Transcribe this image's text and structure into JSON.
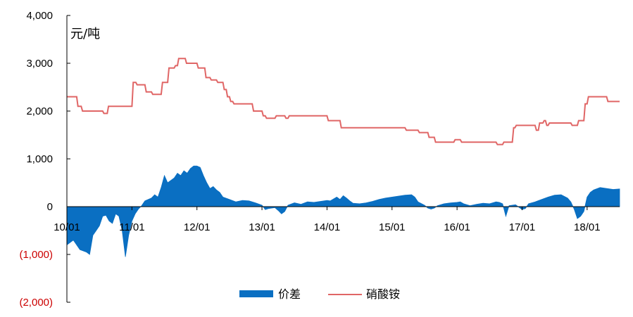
{
  "chart_data": {
    "type": "area+line",
    "unit_label": "元/吨",
    "ylim": [
      -2000,
      4000
    ],
    "yticks": [
      4000,
      3000,
      2000,
      1000,
      0,
      -1000,
      -2000
    ],
    "ytick_labels": [
      "4,000",
      "3,000",
      "2,000",
      "1,000",
      "0",
      "(1,000)",
      "(2,000)"
    ],
    "xlim": [
      2010.0,
      2018.5
    ],
    "xticks": [
      2010,
      2011,
      2012,
      2013,
      2014,
      2015,
      2016,
      2017,
      2018
    ],
    "xtick_labels": [
      "10/01",
      "11/01",
      "12/01",
      "13/01",
      "14/01",
      "15/01",
      "16/01",
      "17/01",
      "18/01"
    ],
    "legend": {
      "position": "bottom-center"
    },
    "colors": {
      "spread": "#0a6fc2",
      "price": "#e06666",
      "negative_label": "#cc0000"
    },
    "series": [
      {
        "name": "价差",
        "kind": "area",
        "points": [
          [
            2010.0,
            -800
          ],
          [
            2010.1,
            -700
          ],
          [
            2010.2,
            -900
          ],
          [
            2010.3,
            -950
          ],
          [
            2010.35,
            -1000
          ],
          [
            2010.4,
            -600
          ],
          [
            2010.45,
            -500
          ],
          [
            2010.5,
            -400
          ],
          [
            2010.55,
            -200
          ],
          [
            2010.6,
            -180
          ],
          [
            2010.65,
            -300
          ],
          [
            2010.7,
            -350
          ],
          [
            2010.75,
            -150
          ],
          [
            2010.8,
            -200
          ],
          [
            2010.85,
            -500
          ],
          [
            2010.9,
            -1050
          ],
          [
            2010.95,
            -600
          ],
          [
            2011.0,
            -300
          ],
          [
            2011.05,
            -150
          ],
          [
            2011.1,
            -50
          ],
          [
            2011.15,
            20
          ],
          [
            2011.2,
            120
          ],
          [
            2011.3,
            180
          ],
          [
            2011.35,
            250
          ],
          [
            2011.4,
            200
          ],
          [
            2011.45,
            400
          ],
          [
            2011.5,
            650
          ],
          [
            2011.55,
            500
          ],
          [
            2011.6,
            550
          ],
          [
            2011.65,
            600
          ],
          [
            2011.7,
            700
          ],
          [
            2011.75,
            650
          ],
          [
            2011.8,
            750
          ],
          [
            2011.85,
            700
          ],
          [
            2011.9,
            800
          ],
          [
            2011.95,
            850
          ],
          [
            2012.0,
            850
          ],
          [
            2012.05,
            820
          ],
          [
            2012.1,
            650
          ],
          [
            2012.15,
            500
          ],
          [
            2012.2,
            380
          ],
          [
            2012.25,
            420
          ],
          [
            2012.3,
            350
          ],
          [
            2012.35,
            300
          ],
          [
            2012.4,
            200
          ],
          [
            2012.5,
            150
          ],
          [
            2012.6,
            100
          ],
          [
            2012.7,
            130
          ],
          [
            2012.8,
            120
          ],
          [
            2012.9,
            80
          ],
          [
            2013.0,
            30
          ],
          [
            2013.05,
            -60
          ],
          [
            2013.1,
            -40
          ],
          [
            2013.2,
            -20
          ],
          [
            2013.25,
            -80
          ],
          [
            2013.3,
            -150
          ],
          [
            2013.35,
            -100
          ],
          [
            2013.4,
            30
          ],
          [
            2013.5,
            80
          ],
          [
            2013.6,
            50
          ],
          [
            2013.7,
            100
          ],
          [
            2013.8,
            90
          ],
          [
            2013.9,
            110
          ],
          [
            2014.0,
            130
          ],
          [
            2014.05,
            120
          ],
          [
            2014.1,
            160
          ],
          [
            2014.15,
            200
          ],
          [
            2014.2,
            150
          ],
          [
            2014.25,
            230
          ],
          [
            2014.3,
            180
          ],
          [
            2014.35,
            120
          ],
          [
            2014.4,
            70
          ],
          [
            2014.5,
            60
          ],
          [
            2014.6,
            80
          ],
          [
            2014.7,
            110
          ],
          [
            2014.8,
            150
          ],
          [
            2014.9,
            180
          ],
          [
            2015.0,
            200
          ],
          [
            2015.1,
            220
          ],
          [
            2015.2,
            240
          ],
          [
            2015.3,
            250
          ],
          [
            2015.35,
            200
          ],
          [
            2015.4,
            100
          ],
          [
            2015.5,
            30
          ],
          [
            2015.55,
            -30
          ],
          [
            2015.6,
            -50
          ],
          [
            2015.65,
            -30
          ],
          [
            2015.7,
            20
          ],
          [
            2015.8,
            60
          ],
          [
            2015.9,
            80
          ],
          [
            2016.0,
            90
          ],
          [
            2016.05,
            100
          ],
          [
            2016.1,
            60
          ],
          [
            2016.2,
            20
          ],
          [
            2016.3,
            50
          ],
          [
            2016.4,
            70
          ],
          [
            2016.5,
            60
          ],
          [
            2016.6,
            100
          ],
          [
            2016.65,
            90
          ],
          [
            2016.7,
            60
          ],
          [
            2016.75,
            -200
          ],
          [
            2016.8,
            20
          ],
          [
            2016.9,
            40
          ],
          [
            2017.0,
            -60
          ],
          [
            2017.05,
            -40
          ],
          [
            2017.1,
            60
          ],
          [
            2017.2,
            100
          ],
          [
            2017.3,
            150
          ],
          [
            2017.4,
            200
          ],
          [
            2017.5,
            240
          ],
          [
            2017.6,
            250
          ],
          [
            2017.7,
            180
          ],
          [
            2017.75,
            100
          ],
          [
            2017.8,
            -50
          ],
          [
            2017.85,
            -250
          ],
          [
            2017.9,
            -200
          ],
          [
            2017.95,
            -100
          ],
          [
            2018.0,
            200
          ],
          [
            2018.05,
            300
          ],
          [
            2018.1,
            350
          ],
          [
            2018.2,
            400
          ],
          [
            2018.3,
            380
          ],
          [
            2018.4,
            360
          ],
          [
            2018.5,
            370
          ]
        ]
      },
      {
        "name": "硝酸铵",
        "kind": "line",
        "points": [
          [
            2010.0,
            2300
          ],
          [
            2010.15,
            2300
          ],
          [
            2010.17,
            2100
          ],
          [
            2010.22,
            2100
          ],
          [
            2010.24,
            2000
          ],
          [
            2010.55,
            2000
          ],
          [
            2010.57,
            1950
          ],
          [
            2010.62,
            1950
          ],
          [
            2010.64,
            2100
          ],
          [
            2011.0,
            2100
          ],
          [
            2011.02,
            2600
          ],
          [
            2011.06,
            2600
          ],
          [
            2011.08,
            2550
          ],
          [
            2011.2,
            2550
          ],
          [
            2011.22,
            2400
          ],
          [
            2011.3,
            2400
          ],
          [
            2011.32,
            2350
          ],
          [
            2011.45,
            2350
          ],
          [
            2011.47,
            2600
          ],
          [
            2011.55,
            2600
          ],
          [
            2011.57,
            2900
          ],
          [
            2011.65,
            2900
          ],
          [
            2011.67,
            2950
          ],
          [
            2011.7,
            2950
          ],
          [
            2011.72,
            3100
          ],
          [
            2011.82,
            3100
          ],
          [
            2011.84,
            3000
          ],
          [
            2012.0,
            3000
          ],
          [
            2012.02,
            2900
          ],
          [
            2012.12,
            2900
          ],
          [
            2012.14,
            2700
          ],
          [
            2012.2,
            2700
          ],
          [
            2012.22,
            2650
          ],
          [
            2012.3,
            2650
          ],
          [
            2012.32,
            2600
          ],
          [
            2012.4,
            2600
          ],
          [
            2012.42,
            2450
          ],
          [
            2012.45,
            2450
          ],
          [
            2012.47,
            2300
          ],
          [
            2012.5,
            2300
          ],
          [
            2012.52,
            2200
          ],
          [
            2012.55,
            2200
          ],
          [
            2012.57,
            2150
          ],
          [
            2012.85,
            2150
          ],
          [
            2012.87,
            2000
          ],
          [
            2013.0,
            2000
          ],
          [
            2013.02,
            1900
          ],
          [
            2013.05,
            1900
          ],
          [
            2013.07,
            1850
          ],
          [
            2013.2,
            1850
          ],
          [
            2013.22,
            1900
          ],
          [
            2013.35,
            1900
          ],
          [
            2013.37,
            1850
          ],
          [
            2013.4,
            1850
          ],
          [
            2013.42,
            1900
          ],
          [
            2014.0,
            1900
          ],
          [
            2014.02,
            1800
          ],
          [
            2014.2,
            1800
          ],
          [
            2014.22,
            1650
          ],
          [
            2015.2,
            1650
          ],
          [
            2015.22,
            1600
          ],
          [
            2015.4,
            1600
          ],
          [
            2015.42,
            1550
          ],
          [
            2015.55,
            1550
          ],
          [
            2015.57,
            1450
          ],
          [
            2015.65,
            1450
          ],
          [
            2015.67,
            1350
          ],
          [
            2015.95,
            1350
          ],
          [
            2015.97,
            1400
          ],
          [
            2016.05,
            1400
          ],
          [
            2016.07,
            1350
          ],
          [
            2016.6,
            1350
          ],
          [
            2016.62,
            1300
          ],
          [
            2016.7,
            1300
          ],
          [
            2016.72,
            1350
          ],
          [
            2016.85,
            1350
          ],
          [
            2016.87,
            1650
          ],
          [
            2016.89,
            1650
          ],
          [
            2016.91,
            1700
          ],
          [
            2017.2,
            1700
          ],
          [
            2017.22,
            1600
          ],
          [
            2017.25,
            1600
          ],
          [
            2017.27,
            1750
          ],
          [
            2017.32,
            1750
          ],
          [
            2017.34,
            1800
          ],
          [
            2017.36,
            1800
          ],
          [
            2017.38,
            1700
          ],
          [
            2017.4,
            1700
          ],
          [
            2017.42,
            1750
          ],
          [
            2017.75,
            1750
          ],
          [
            2017.77,
            1700
          ],
          [
            2017.85,
            1700
          ],
          [
            2017.87,
            1800
          ],
          [
            2017.95,
            1800
          ],
          [
            2017.97,
            2150
          ],
          [
            2018.0,
            2150
          ],
          [
            2018.02,
            2300
          ],
          [
            2018.3,
            2300
          ],
          [
            2018.32,
            2200
          ],
          [
            2018.5,
            2200
          ]
        ]
      }
    ]
  }
}
